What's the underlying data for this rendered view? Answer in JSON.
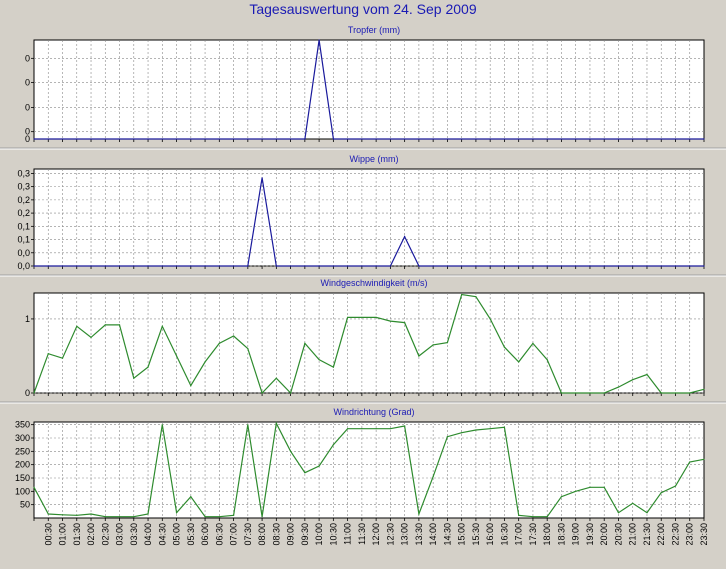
{
  "page_title": "Tagesauswertung vom 24. Sep 2009",
  "colors": {
    "background": "#d4d0c8",
    "plot_background": "#ffffff",
    "title": "#1a1ab4",
    "tropfer_line": "#1a1a9c",
    "wippe_line": "#1a1a9c",
    "wind_line": "#2e8b2e",
    "grid": "#888888"
  },
  "time_labels": [
    "00:30",
    "01:00",
    "01:30",
    "02:00",
    "02:30",
    "03:00",
    "03:30",
    "04:00",
    "04:30",
    "05:00",
    "05:30",
    "06:00",
    "06:30",
    "07:00",
    "07:30",
    "08:00",
    "08:30",
    "09:00",
    "09:30",
    "10:00",
    "10:30",
    "11:00",
    "11:30",
    "12:00",
    "12:30",
    "13:00",
    "13:30",
    "14:00",
    "14:30",
    "15:00",
    "15:30",
    "16:00",
    "16:30",
    "17:00",
    "17:30",
    "18:00",
    "18:30",
    "19:00",
    "19:30",
    "20:00",
    "20:30",
    "21:00",
    "21:30",
    "22:00",
    "22:30",
    "23:00",
    "23:30"
  ],
  "chart_data": [
    {
      "type": "line",
      "title": "Tropfer (mm)",
      "yticks": [
        "0",
        "0",
        "0",
        "0"
      ],
      "grid": true,
      "series": [
        {
          "x": [
            0,
            19,
            20,
            21,
            47
          ],
          "y": [
            0,
            0,
            1,
            0,
            0
          ]
        }
      ]
    },
    {
      "type": "line",
      "title": "Wippe (mm)",
      "yticks": [
        "0,0",
        "0,0",
        "0,1",
        "0,1",
        "0,2",
        "0,2",
        "0,3",
        "0,3"
      ],
      "ylim": [
        0,
        0.33
      ],
      "grid": true,
      "series": [
        {
          "x": [
            0,
            15,
            16,
            17,
            25,
            26,
            27,
            47
          ],
          "y": [
            0,
            0,
            0.3,
            0,
            0,
            0.1,
            0,
            0
          ]
        }
      ]
    },
    {
      "type": "line",
      "title": "Windgeschwindigkeit (m/s)",
      "yticks": [
        "0",
        "1"
      ],
      "ylim": [
        0,
        1.35
      ],
      "grid": true,
      "series": [
        {
          "x": [
            0,
            1,
            2,
            3,
            4,
            5,
            6,
            7,
            8,
            9,
            10,
            11,
            12,
            13,
            14,
            15,
            16,
            17,
            18,
            19,
            20,
            21,
            22,
            23,
            24,
            25,
            26,
            27,
            28,
            29,
            30,
            31,
            32,
            33,
            34,
            35,
            36,
            37,
            38,
            39,
            40,
            41,
            42,
            43,
            44,
            45,
            46,
            47
          ],
          "y": [
            0,
            0.53,
            0.47,
            0.9,
            0.75,
            0.92,
            0.92,
            0.2,
            0.35,
            0.9,
            0.5,
            0.1,
            0.42,
            0.67,
            0.77,
            0.6,
            0,
            0.2,
            0,
            0.67,
            0.45,
            0.35,
            1.02,
            1.02,
            1.02,
            0.97,
            0.95,
            0.5,
            0.65,
            0.68,
            1.33,
            1.3,
            1.0,
            0.62,
            0.42,
            0.67,
            0.45,
            0,
            0,
            0,
            0,
            0.08,
            0.18,
            0.25,
            0,
            0,
            0,
            0.05
          ]
        }
      ]
    },
    {
      "type": "line",
      "title": "Windrichtung (Grad)",
      "yticks": [
        "50",
        "100",
        "150",
        "200",
        "250",
        "300",
        "350"
      ],
      "ylim": [
        0,
        360
      ],
      "grid": true,
      "series": [
        {
          "x": [
            0,
            1,
            2,
            3,
            4,
            5,
            6,
            7,
            8,
            9,
            10,
            11,
            12,
            13,
            14,
            15,
            16,
            17,
            18,
            19,
            20,
            21,
            22,
            23,
            24,
            25,
            26,
            27,
            28,
            29,
            30,
            31,
            32,
            33,
            34,
            35,
            36,
            37,
            38,
            39,
            40,
            41,
            42,
            43,
            44,
            45,
            46,
            47
          ],
          "y": [
            115,
            15,
            12,
            10,
            15,
            5,
            5,
            5,
            15,
            350,
            20,
            80,
            5,
            5,
            10,
            350,
            5,
            355,
            250,
            170,
            195,
            275,
            335,
            335,
            335,
            335,
            345,
            15,
            155,
            305,
            320,
            330,
            335,
            340,
            10,
            5,
            5,
            80,
            100,
            115,
            115,
            20,
            55,
            20,
            95,
            120,
            210,
            220
          ]
        }
      ]
    }
  ]
}
